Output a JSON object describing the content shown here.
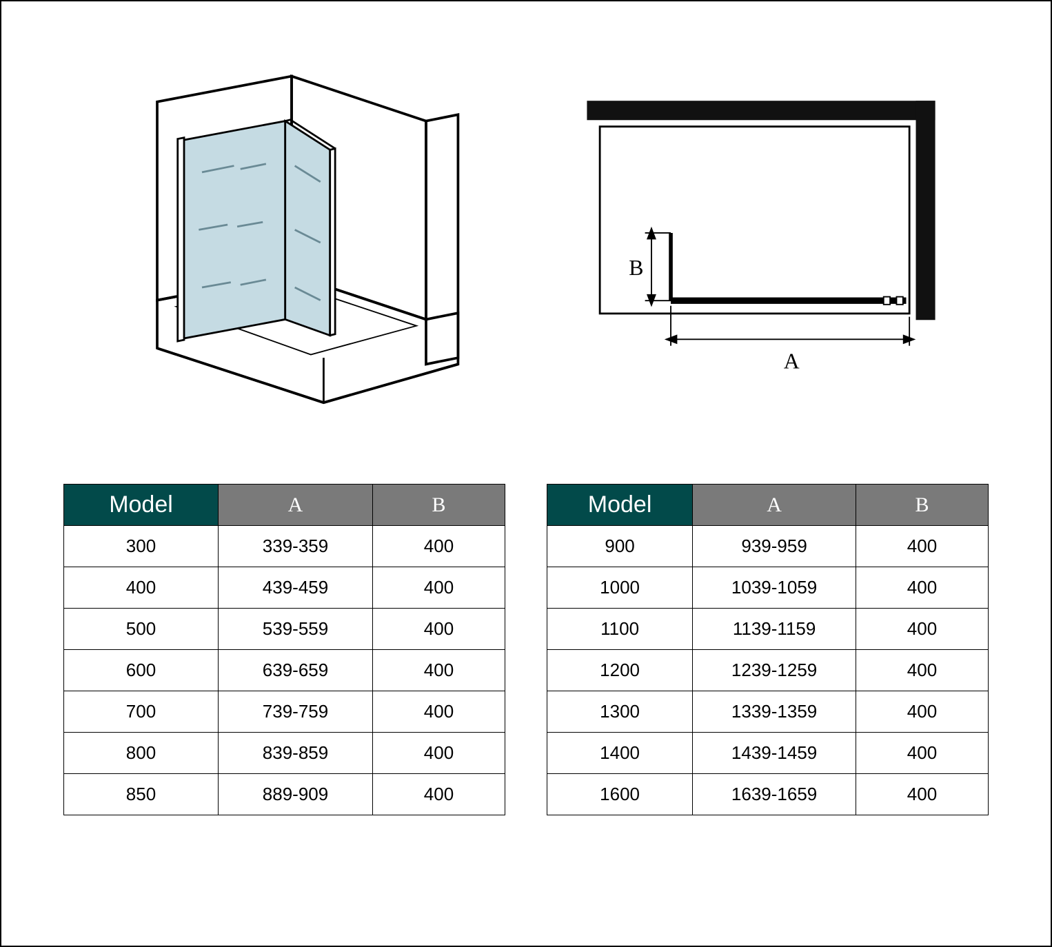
{
  "colors": {
    "header_model_bg": "#024a4a",
    "header_ab_bg": "#7a7a7a",
    "header_text": "#ffffff",
    "border": "#000000",
    "glass_fill": "#c5dbe3",
    "glass_stroke": "#6a8a95",
    "line": "#000000",
    "plan_frame": "#111111"
  },
  "headers": {
    "model": "Model",
    "a": "A",
    "b": "B"
  },
  "plan_labels": {
    "a": "A",
    "b": "B"
  },
  "table_left": {
    "col_widths_pct": [
      35,
      35,
      30
    ],
    "rows": [
      {
        "model": "300",
        "a": "339-359",
        "b": "400"
      },
      {
        "model": "400",
        "a": "439-459",
        "b": "400"
      },
      {
        "model": "500",
        "a": "539-559",
        "b": "400"
      },
      {
        "model": "600",
        "a": "639-659",
        "b": "400"
      },
      {
        "model": "700",
        "a": "739-759",
        "b": "400"
      },
      {
        "model": "800",
        "a": "839-859",
        "b": "400"
      },
      {
        "model": "850",
        "a": "889-909",
        "b": "400"
      }
    ]
  },
  "table_right": {
    "col_widths_pct": [
      33,
      37,
      30
    ],
    "rows": [
      {
        "model": "900",
        "a": "939-959",
        "b": "400"
      },
      {
        "model": "1000",
        "a": "1039-1059",
        "b": "400"
      },
      {
        "model": "1100",
        "a": "1139-1159",
        "b": "400"
      },
      {
        "model": "1200",
        "a": "1239-1259",
        "b": "400"
      },
      {
        "model": "1300",
        "a": "1339-1359",
        "b": "400"
      },
      {
        "model": "1400",
        "a": "1439-1459",
        "b": "400"
      },
      {
        "model": "1600",
        "a": "1639-1659",
        "b": "400"
      }
    ]
  }
}
